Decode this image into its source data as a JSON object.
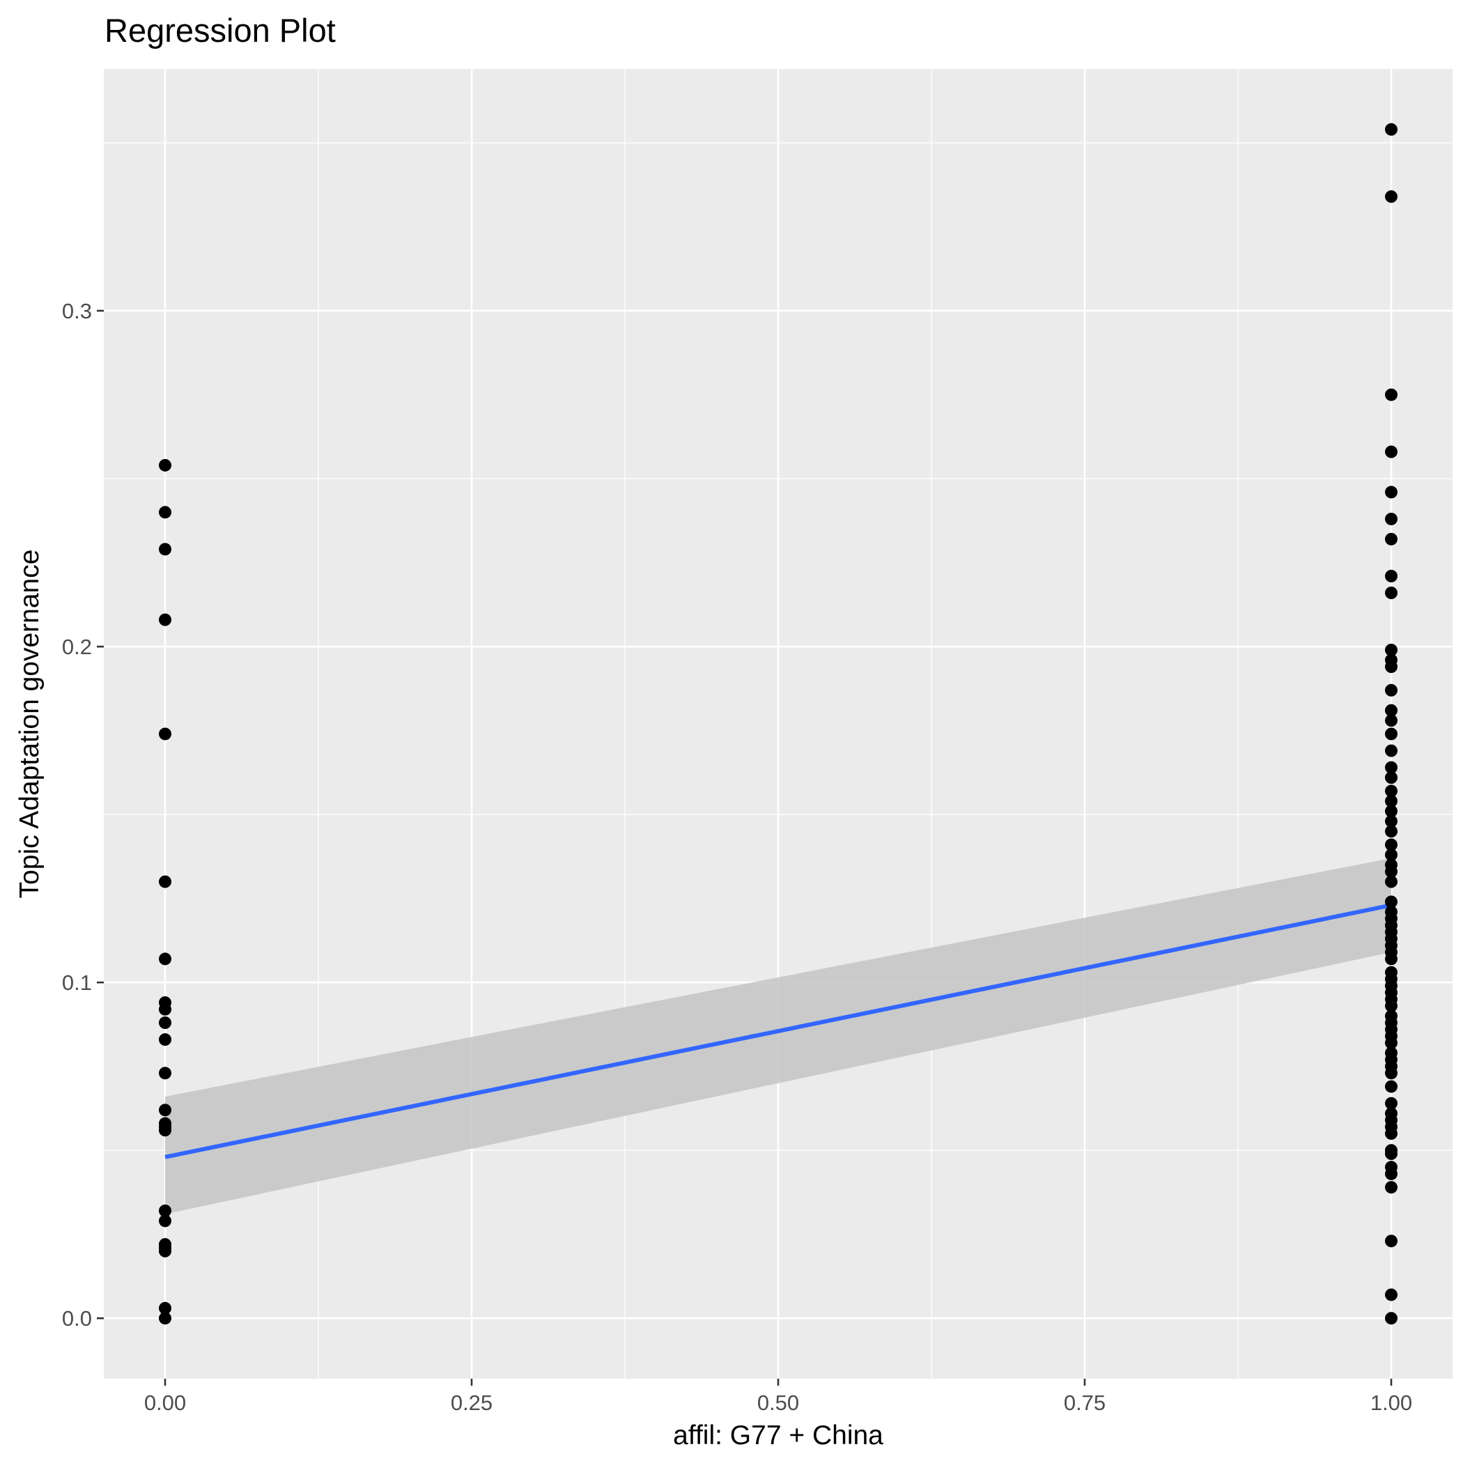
{
  "chart_data": {
    "type": "scatter",
    "title": "Regression Plot",
    "xlabel": "affil: G77 + China",
    "ylabel": "Topic Adaptation governance",
    "xlim": [
      -0.05,
      1.05
    ],
    "ylim": [
      -0.018,
      0.372
    ],
    "x_ticks": [
      0.0,
      0.25,
      0.5,
      0.75,
      1.0
    ],
    "x_tick_labels": [
      "0.00",
      "0.25",
      "0.50",
      "0.75",
      "1.00"
    ],
    "y_ticks": [
      0.0,
      0.1,
      0.2,
      0.3
    ],
    "y_tick_labels": [
      "0.0",
      "0.1",
      "0.2",
      "0.3"
    ],
    "grid": true,
    "legend": "none",
    "colors": {
      "panel_background": "#ebebeb",
      "grid": "#ffffff",
      "points": "#000000",
      "fit_line": "#3366ff",
      "confidence_band": "#c4c4c4"
    },
    "points": {
      "x0": [
        0.0,
        0.003,
        0.02,
        0.021,
        0.022,
        0.029,
        0.032,
        0.056,
        0.057,
        0.058,
        0.062,
        0.073,
        0.083,
        0.088,
        0.092,
        0.094,
        0.107,
        0.13,
        0.174,
        0.208,
        0.229,
        0.24,
        0.254
      ],
      "x1": [
        0.0,
        0.007,
        0.023,
        0.039,
        0.043,
        0.045,
        0.049,
        0.05,
        0.055,
        0.057,
        0.059,
        0.061,
        0.064,
        0.069,
        0.073,
        0.075,
        0.077,
        0.079,
        0.082,
        0.084,
        0.086,
        0.088,
        0.09,
        0.093,
        0.095,
        0.097,
        0.099,
        0.101,
        0.103,
        0.107,
        0.109,
        0.111,
        0.113,
        0.115,
        0.117,
        0.119,
        0.121,
        0.124,
        0.13,
        0.133,
        0.135,
        0.138,
        0.141,
        0.145,
        0.148,
        0.151,
        0.154,
        0.157,
        0.161,
        0.164,
        0.169,
        0.174,
        0.178,
        0.181,
        0.187,
        0.194,
        0.196,
        0.199,
        0.216,
        0.221,
        0.232,
        0.238,
        0.246,
        0.258,
        0.275,
        0.334,
        0.354
      ]
    },
    "fit": {
      "x": [
        0.0,
        1.0
      ],
      "y": [
        0.048,
        0.123
      ],
      "ci_lower": [
        0.031,
        0.109
      ],
      "ci_upper": [
        0.066,
        0.137
      ]
    }
  }
}
